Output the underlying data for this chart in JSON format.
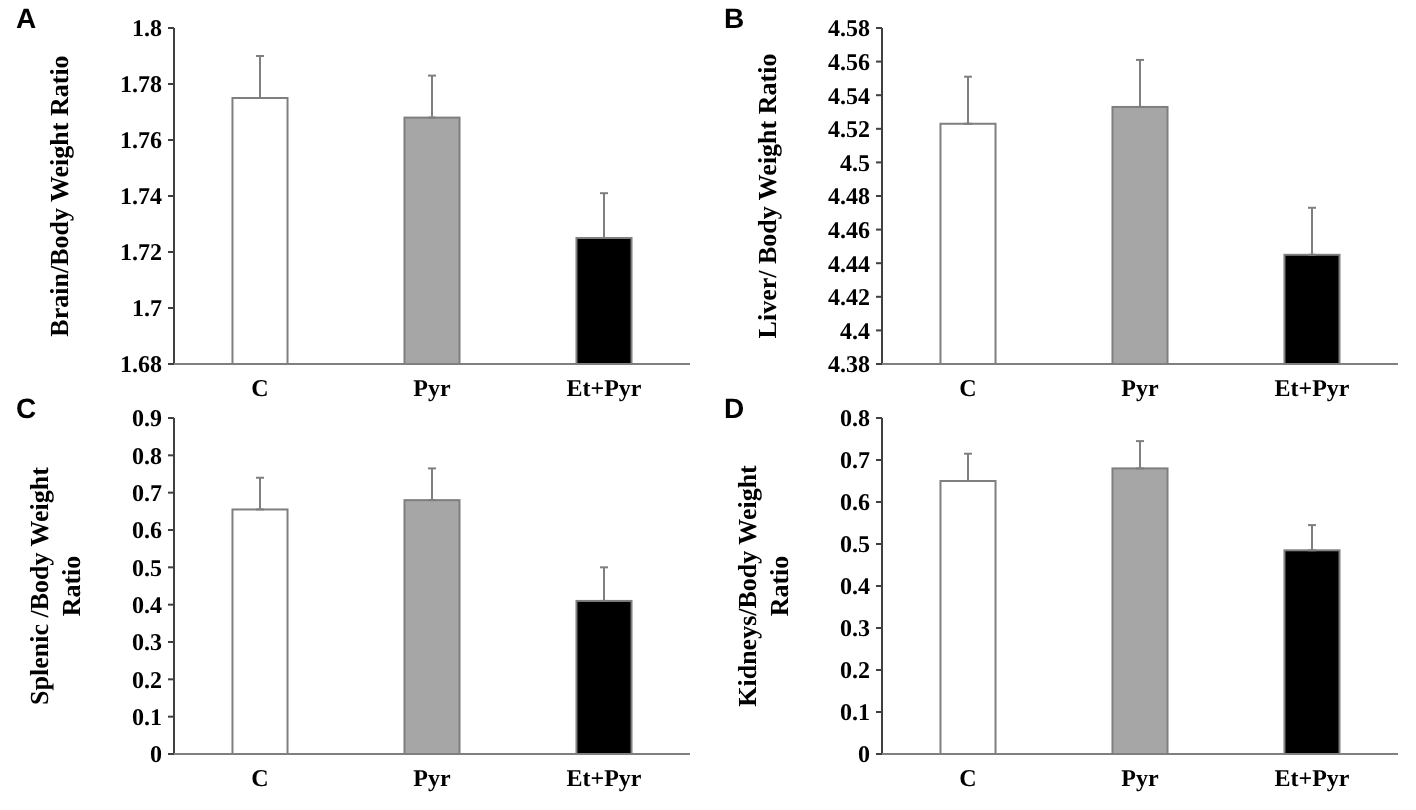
{
  "chart_data": [
    {
      "type": "bar",
      "title": "A",
      "ylabel": "Brain/Body Weight Ratio",
      "categories": [
        "C",
        "Pyr",
        "Et+Pyr"
      ],
      "values": [
        1.775,
        1.768,
        1.725
      ],
      "colors": [
        "#ffffff",
        "#a6a6a6",
        "#000000"
      ],
      "errors": [
        [
          1.775,
          1.79
        ],
        [
          1.768,
          1.783
        ],
        [
          1.725,
          1.741
        ]
      ],
      "ylim": [
        1.68,
        1.8
      ],
      "yticks": [
        1.68,
        1.7,
        1.72,
        1.74,
        1.76,
        1.78,
        1.8
      ],
      "grid": false
    },
    {
      "type": "bar",
      "title": "B",
      "ylabel": "Liver/ Body Weight Ratio",
      "categories": [
        "C",
        "Pyr",
        "Et+Pyr"
      ],
      "values": [
        4.523,
        4.533,
        4.445
      ],
      "colors": [
        "#ffffff",
        "#a6a6a6",
        "#000000"
      ],
      "errors": [
        [
          4.523,
          4.551
        ],
        [
          4.533,
          4.561
        ],
        [
          4.445,
          4.473
        ]
      ],
      "ylim": [
        4.38,
        4.58
      ],
      "yticks": [
        4.38,
        4.4,
        4.42,
        4.44,
        4.46,
        4.48,
        4.5,
        4.52,
        4.54,
        4.56,
        4.58
      ],
      "grid": false
    },
    {
      "type": "bar",
      "title": "C",
      "ylabel": "Splenic /Body Weight Ratio",
      "categories": [
        "C",
        "Pyr",
        "Et+Pyr"
      ],
      "values": [
        0.655,
        0.68,
        0.41
      ],
      "colors": [
        "#ffffff",
        "#a6a6a6",
        "#000000"
      ],
      "errors": [
        [
          0.655,
          0.74
        ],
        [
          0.68,
          0.765
        ],
        [
          0.41,
          0.5
        ]
      ],
      "ylim": [
        0,
        0.9
      ],
      "yticks": [
        0,
        0.1,
        0.2,
        0.3,
        0.4,
        0.5,
        0.6,
        0.7,
        0.8,
        0.9
      ],
      "grid": false
    },
    {
      "type": "bar",
      "title": "D",
      "ylabel": "Kidneys/Body Weight Ratio",
      "categories": [
        "C",
        "Pyr",
        "Et+Pyr"
      ],
      "values": [
        0.65,
        0.68,
        0.485
      ],
      "colors": [
        "#ffffff",
        "#a6a6a6",
        "#000000"
      ],
      "errors": [
        [
          0.65,
          0.715
        ],
        [
          0.68,
          0.745
        ],
        [
          0.485,
          0.545
        ]
      ],
      "ylim": [
        0,
        0.8
      ],
      "yticks": [
        0,
        0.1,
        0.2,
        0.3,
        0.4,
        0.5,
        0.6,
        0.7,
        0.8
      ],
      "grid": false
    }
  ]
}
